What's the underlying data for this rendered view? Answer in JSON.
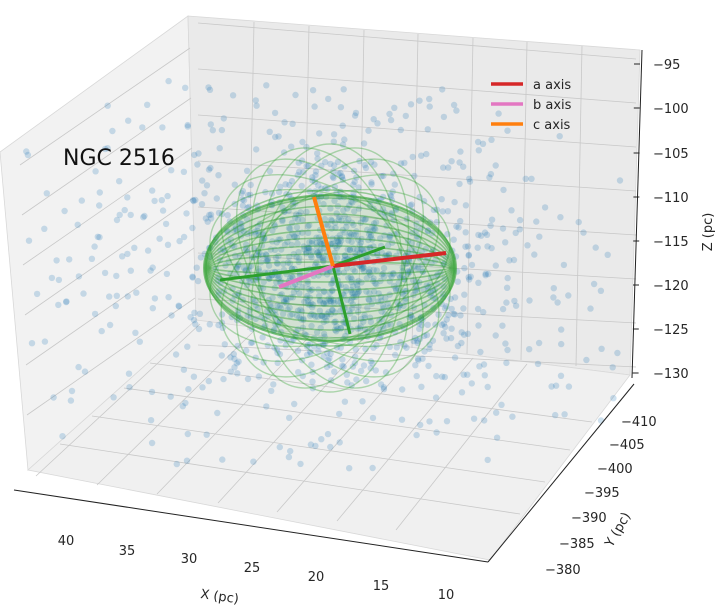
{
  "chart_data": {
    "type": "scatter",
    "projection": "3d",
    "title": "NGC 2516",
    "xlabel": "X (pc)",
    "ylabel": "Y (pc)",
    "zlabel": "Z (pc)",
    "xlim": [
      8,
      43
    ],
    "ylim": [
      -378,
      -412
    ],
    "zlim": [
      -130,
      -95
    ],
    "x_ticks": [
      "40",
      "35",
      "30",
      "25",
      "20",
      "15",
      "10"
    ],
    "y_ticks": [
      "−380",
      "−385",
      "−390",
      "−395",
      "−400",
      "−405",
      "−410"
    ],
    "z_ticks": [
      "−95",
      "−100",
      "−105",
      "−110",
      "−115",
      "−120",
      "−125",
      "−130"
    ],
    "grid": true,
    "legend_position": "top-right",
    "legend": [
      {
        "label": "a axis",
        "color": "#d62728"
      },
      {
        "label": "b axis",
        "color": "#e377c2"
      },
      {
        "label": "c axis",
        "color": "#ff7f0e"
      }
    ],
    "series": [
      {
        "kind": "stars",
        "color": "#1f77b4",
        "count": 1500,
        "center": [
          24,
          -395,
          -116
        ],
        "spread": [
          7,
          6,
          6
        ]
      },
      {
        "kind": "ellipsoid",
        "color": "#2ca02c",
        "center": [
          24,
          -395,
          -116
        ],
        "semi_axes_pc": [
          12,
          9,
          4.5
        ]
      }
    ],
    "axes_lines": [
      {
        "name": "a axis",
        "color": "#d62728"
      },
      {
        "name": "b axis",
        "color": "#e377c2"
      },
      {
        "name": "c axis",
        "color": "#ff7f0e"
      }
    ]
  }
}
